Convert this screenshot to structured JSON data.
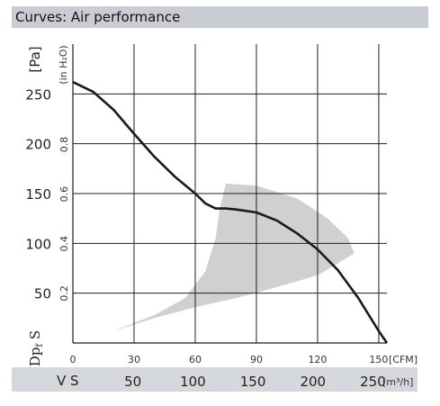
{
  "header": {
    "title": "Curves: Air performance"
  },
  "chart_data": {
    "type": "line",
    "title": "",
    "y_axis": {
      "symbol_main": "Dp",
      "symbol_sub": "f",
      "symbol_suffix": "S",
      "unit_label": "[Pa]",
      "ticks": [
        "50",
        "100",
        "150",
        "200",
        "250"
      ],
      "tick_values": [
        50,
        100,
        150,
        200,
        250
      ],
      "range": [
        0,
        300
      ],
      "secondary_unit_label": "(in H₂O)",
      "secondary_ticks": [
        "0.2",
        "0.4",
        "0.6",
        "0.8"
      ],
      "secondary_tick_values_pa": [
        49.8,
        99.6,
        149.4,
        199.2
      ]
    },
    "x_axis": {
      "cfm_ticks": [
        "0",
        "30",
        "60",
        "90",
        "120",
        "150"
      ],
      "cfm_tick_values": [
        0,
        30,
        60,
        90,
        120,
        150
      ],
      "cfm_range": [
        0,
        154
      ],
      "cfm_unit_label": "[CFM]",
      "m3h_symbol": "V S",
      "m3h_ticks": [
        "50",
        "100",
        "150",
        "200",
        "250"
      ],
      "m3h_tick_values": [
        50,
        100,
        150,
        200,
        250
      ],
      "m3h_unit_label": "[m³/h]"
    },
    "grid": true,
    "series": [
      {
        "x_cfm": [
          0,
          10,
          20,
          30,
          40,
          50,
          60,
          65,
          70,
          75,
          80,
          90,
          100,
          110,
          120,
          130,
          140,
          150,
          154
        ],
        "y_pa": [
          262,
          252,
          234,
          210,
          187,
          167,
          150,
          140,
          135,
          135,
          134,
          131,
          123,
          110,
          94,
          73,
          45,
          12,
          0
        ]
      }
    ],
    "operating_region": {
      "outline_cfm": [
        0,
        20,
        40,
        55,
        65,
        70,
        72,
        75,
        90,
        110,
        125,
        135,
        138,
        130,
        120,
        100,
        80,
        60,
        40,
        20,
        0
      ],
      "outline_pa": [
        0,
        12,
        28,
        45,
        72,
        105,
        135,
        160,
        158,
        145,
        125,
        105,
        90,
        80,
        68,
        56,
        45,
        36,
        25,
        12,
        0
      ]
    }
  }
}
